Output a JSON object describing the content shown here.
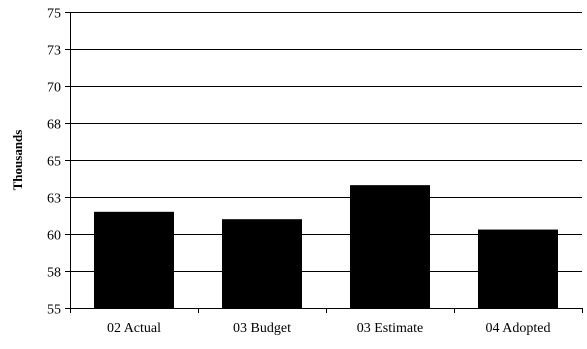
{
  "chart_data": {
    "type": "bar",
    "title": "",
    "xlabel": "",
    "ylabel": "Thousands",
    "categories": [
      "02 Actual",
      "03 Budget",
      "03 Estimate",
      "04 Adopted"
    ],
    "values": [
      61.5,
      61.0,
      63.3,
      60.3
    ],
    "ylim": [
      55,
      75
    ],
    "yticks": [
      55,
      57.5,
      60,
      62.5,
      65,
      67.5,
      70,
      72.5,
      75
    ],
    "ytick_labels": [
      "55",
      "58",
      "60",
      "63",
      "65",
      "68",
      "70",
      "73",
      "75"
    ],
    "grid": true,
    "legend": "none",
    "bar_color": "#000000"
  }
}
